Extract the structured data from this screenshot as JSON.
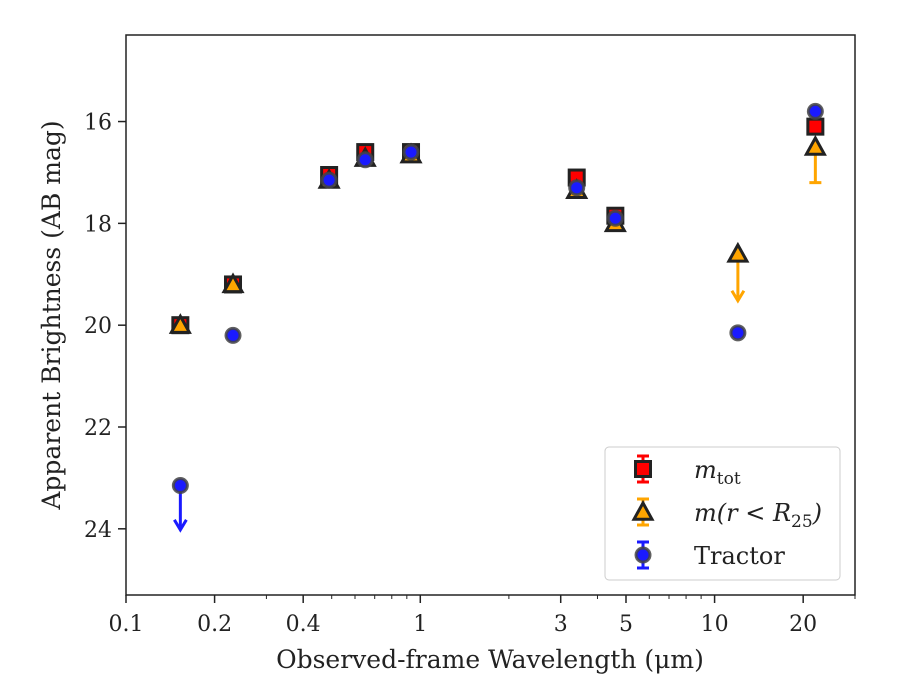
{
  "chart_data": {
    "type": "scatter",
    "xlabel": "Observed-frame Wavelength (μm)",
    "ylabel": "Apparent Brightness (AB mag)",
    "x_scale": "log",
    "y_inverted": true,
    "xlim": [
      0.1,
      30
    ],
    "ylim": [
      25.3,
      14.3
    ],
    "x_ticks": [
      {
        "value": 0.1,
        "label": "0.1"
      },
      {
        "value": 0.2,
        "label": "0.2"
      },
      {
        "value": 0.4,
        "label": "0.4"
      },
      {
        "value": 1,
        "label": "1"
      },
      {
        "value": 3,
        "label": "3"
      },
      {
        "value": 5,
        "label": "5"
      },
      {
        "value": 10,
        "label": "10"
      },
      {
        "value": 20,
        "label": "20"
      }
    ],
    "y_ticks": [
      {
        "value": 16,
        "label": "16"
      },
      {
        "value": 18,
        "label": "18"
      },
      {
        "value": 20,
        "label": "20"
      },
      {
        "value": 22,
        "label": "22"
      },
      {
        "value": 24,
        "label": "24"
      }
    ],
    "legend_position": "lower-right",
    "series": [
      {
        "name": "m_tot",
        "legend_main": "m",
        "legend_sub": "tot",
        "marker": "square",
        "color": "#ff0000",
        "edge_color": "#222222",
        "points": [
          {
            "x": 0.153,
            "y": 20.0
          },
          {
            "x": 0.231,
            "y": 19.2
          },
          {
            "x": 0.49,
            "y": 17.05
          },
          {
            "x": 0.65,
            "y": 16.6
          },
          {
            "x": 0.93,
            "y": 16.6
          },
          {
            "x": 3.4,
            "y": 17.1
          },
          {
            "x": 4.6,
            "y": 17.85
          },
          {
            "x": 22.0,
            "y": 16.1
          }
        ]
      },
      {
        "name": "m(r < R_25)",
        "legend_main": "m(r < R",
        "legend_sub": "25",
        "legend_tail": ")",
        "marker": "triangle",
        "color": "#ffa500",
        "edge_color": "#222222",
        "points": [
          {
            "x": 0.153,
            "y": 20.0
          },
          {
            "x": 0.231,
            "y": 19.2
          },
          {
            "x": 0.49,
            "y": 17.15
          },
          {
            "x": 0.65,
            "y": 16.72
          },
          {
            "x": 0.93,
            "y": 16.65
          },
          {
            "x": 3.4,
            "y": 17.35
          },
          {
            "x": 4.6,
            "y": 18.0
          },
          {
            "x": 12.0,
            "y": 18.6,
            "upper_limit_to": 19.5
          },
          {
            "x": 22.0,
            "y": 16.5,
            "error_to": 17.2
          }
        ]
      },
      {
        "name": "Tractor",
        "legend_main": "Tractor",
        "marker": "circle",
        "color": "#1a1aff",
        "edge_color": "#444444",
        "points": [
          {
            "x": 0.153,
            "y": 23.15,
            "upper_limit_to": 24.0
          },
          {
            "x": 0.231,
            "y": 20.2
          },
          {
            "x": 0.49,
            "y": 17.15
          },
          {
            "x": 0.65,
            "y": 16.75
          },
          {
            "x": 0.93,
            "y": 16.6
          },
          {
            "x": 3.4,
            "y": 17.3
          },
          {
            "x": 4.6,
            "y": 17.9
          },
          {
            "x": 12.0,
            "y": 20.15
          },
          {
            "x": 22.0,
            "y": 15.8
          }
        ]
      }
    ]
  }
}
